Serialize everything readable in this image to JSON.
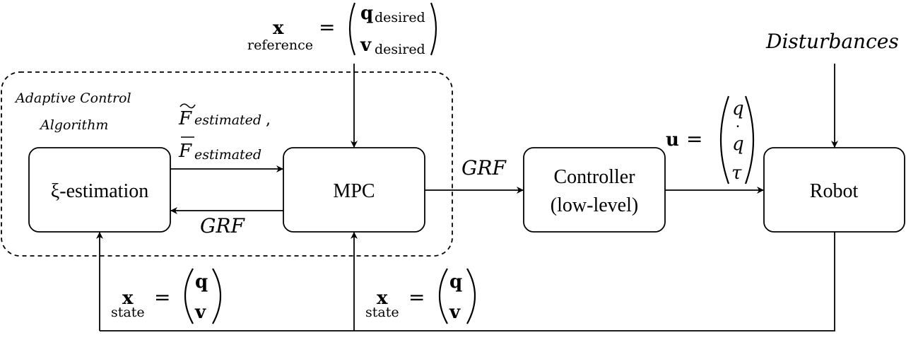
{
  "group": {
    "title_line1": "Adaptive Control",
    "title_line2": "Algorithm"
  },
  "blocks": {
    "xi": "ξ-estimation",
    "mpc": "MPC",
    "controller_line1": "Controller",
    "controller_line2": "(low-level)",
    "robot": "Robot"
  },
  "edges": {
    "est_to_mpc": {
      "f_tilde": "F",
      "f_bar": "F",
      "subscript": "estimated",
      "comma": ","
    },
    "mpc_to_est": "GRF",
    "mpc_to_ctrl": "GRF",
    "disturbances": "Disturbances"
  },
  "reference": {
    "symbol": "x",
    "sub": "reference",
    "eq": "=",
    "q": "q",
    "q_sub": "desired",
    "v": "v",
    "v_sub": "desired"
  },
  "u_vector": {
    "symbol": "u",
    "eq": "=",
    "q": "q",
    "qdot": "q",
    "dot": "˙",
    "tau": "τ"
  },
  "state_left": {
    "symbol": "x",
    "sub": "state",
    "eq": "=",
    "q": "q",
    "v": "v"
  },
  "state_right": {
    "symbol": "x",
    "sub": "state",
    "eq": "=",
    "q": "q",
    "v": "v"
  }
}
